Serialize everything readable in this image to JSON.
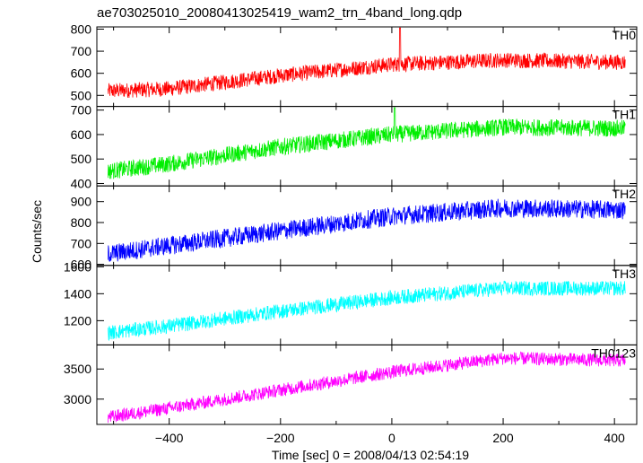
{
  "title": "ae703025010_20080413025419_wam2_trn_4band_long.qdp",
  "xlabel": "Time [sec] 0 = 2008/04/13 02:54:19",
  "ylabel": "Counts/sec",
  "chart_data": {
    "type": "line",
    "title": "ae703025010_20080413025419_wam2_trn_4band_long.qdp",
    "xlabel": "Time [sec] 0 = 2008/04/13 02:54:19",
    "ylabel": "Counts/sec",
    "xlim": [
      -530,
      440
    ],
    "x_ticks": [
      -400,
      -200,
      0,
      200,
      400
    ],
    "x_tick_labels": [
      "−400",
      "−200",
      "0",
      "200",
      "400"
    ],
    "x_range_data": [
      -510,
      420
    ],
    "grid": false,
    "series": [
      {
        "name": "TH0",
        "color": "#ff0000",
        "ylim": [
          450,
          810
        ],
        "y_ticks": [
          500,
          600,
          700,
          800
        ],
        "y_tick_labels": [
          "500",
          "600",
          "700",
          "800"
        ],
        "trend": [
          [
            -510,
            520
          ],
          [
            -400,
            530
          ],
          [
            -200,
            590
          ],
          [
            0,
            640
          ],
          [
            200,
            660
          ],
          [
            420,
            650
          ]
        ],
        "noise": 35,
        "spike": {
          "x": 15,
          "y": 805
        }
      },
      {
        "name": "TH1",
        "color": "#00ee00",
        "ylim": [
          390,
          715
        ],
        "y_ticks": [
          400,
          500,
          600,
          700
        ],
        "y_tick_labels": [
          "400",
          "500",
          "600",
          "700"
        ],
        "trend": [
          [
            -510,
            450
          ],
          [
            -400,
            480
          ],
          [
            -200,
            550
          ],
          [
            0,
            600
          ],
          [
            200,
            630
          ],
          [
            420,
            625
          ]
        ],
        "noise": 35,
        "spike": {
          "x": 5,
          "y": 710
        }
      },
      {
        "name": "TH2",
        "color": "#0000ff",
        "ylim": [
          595,
          975
        ],
        "y_ticks": [
          600,
          700,
          800,
          900
        ],
        "y_tick_labels": [
          "600",
          "700",
          "800",
          "900"
        ],
        "trend": [
          [
            -510,
            650
          ],
          [
            -400,
            690
          ],
          [
            -200,
            760
          ],
          [
            0,
            830
          ],
          [
            200,
            870
          ],
          [
            420,
            860
          ]
        ],
        "noise": 45,
        "spike": null
      },
      {
        "name": "TH3",
        "color": "#00ffff",
        "ylim": [
          1020,
          1610
        ],
        "y_ticks": [
          1200,
          1400,
          1600
        ],
        "y_tick_labels": [
          "1200",
          "1400",
          "1600"
        ],
        "trend": [
          [
            -510,
            1110
          ],
          [
            -400,
            1160
          ],
          [
            -200,
            1270
          ],
          [
            0,
            1370
          ],
          [
            200,
            1440
          ],
          [
            420,
            1440
          ]
        ],
        "noise": 55,
        "spike": null
      },
      {
        "name": "TH0123",
        "color": "#ff00ff",
        "ylim": [
          2580,
          3900
        ],
        "y_ticks": [
          3000,
          3500
        ],
        "y_tick_labels": [
          "3000",
          "3500"
        ],
        "trend": [
          [
            -510,
            2700
          ],
          [
            -400,
            2850
          ],
          [
            -200,
            3150
          ],
          [
            0,
            3450
          ],
          [
            200,
            3680
          ],
          [
            420,
            3640
          ]
        ],
        "noise": 110,
        "spike": null
      }
    ]
  }
}
